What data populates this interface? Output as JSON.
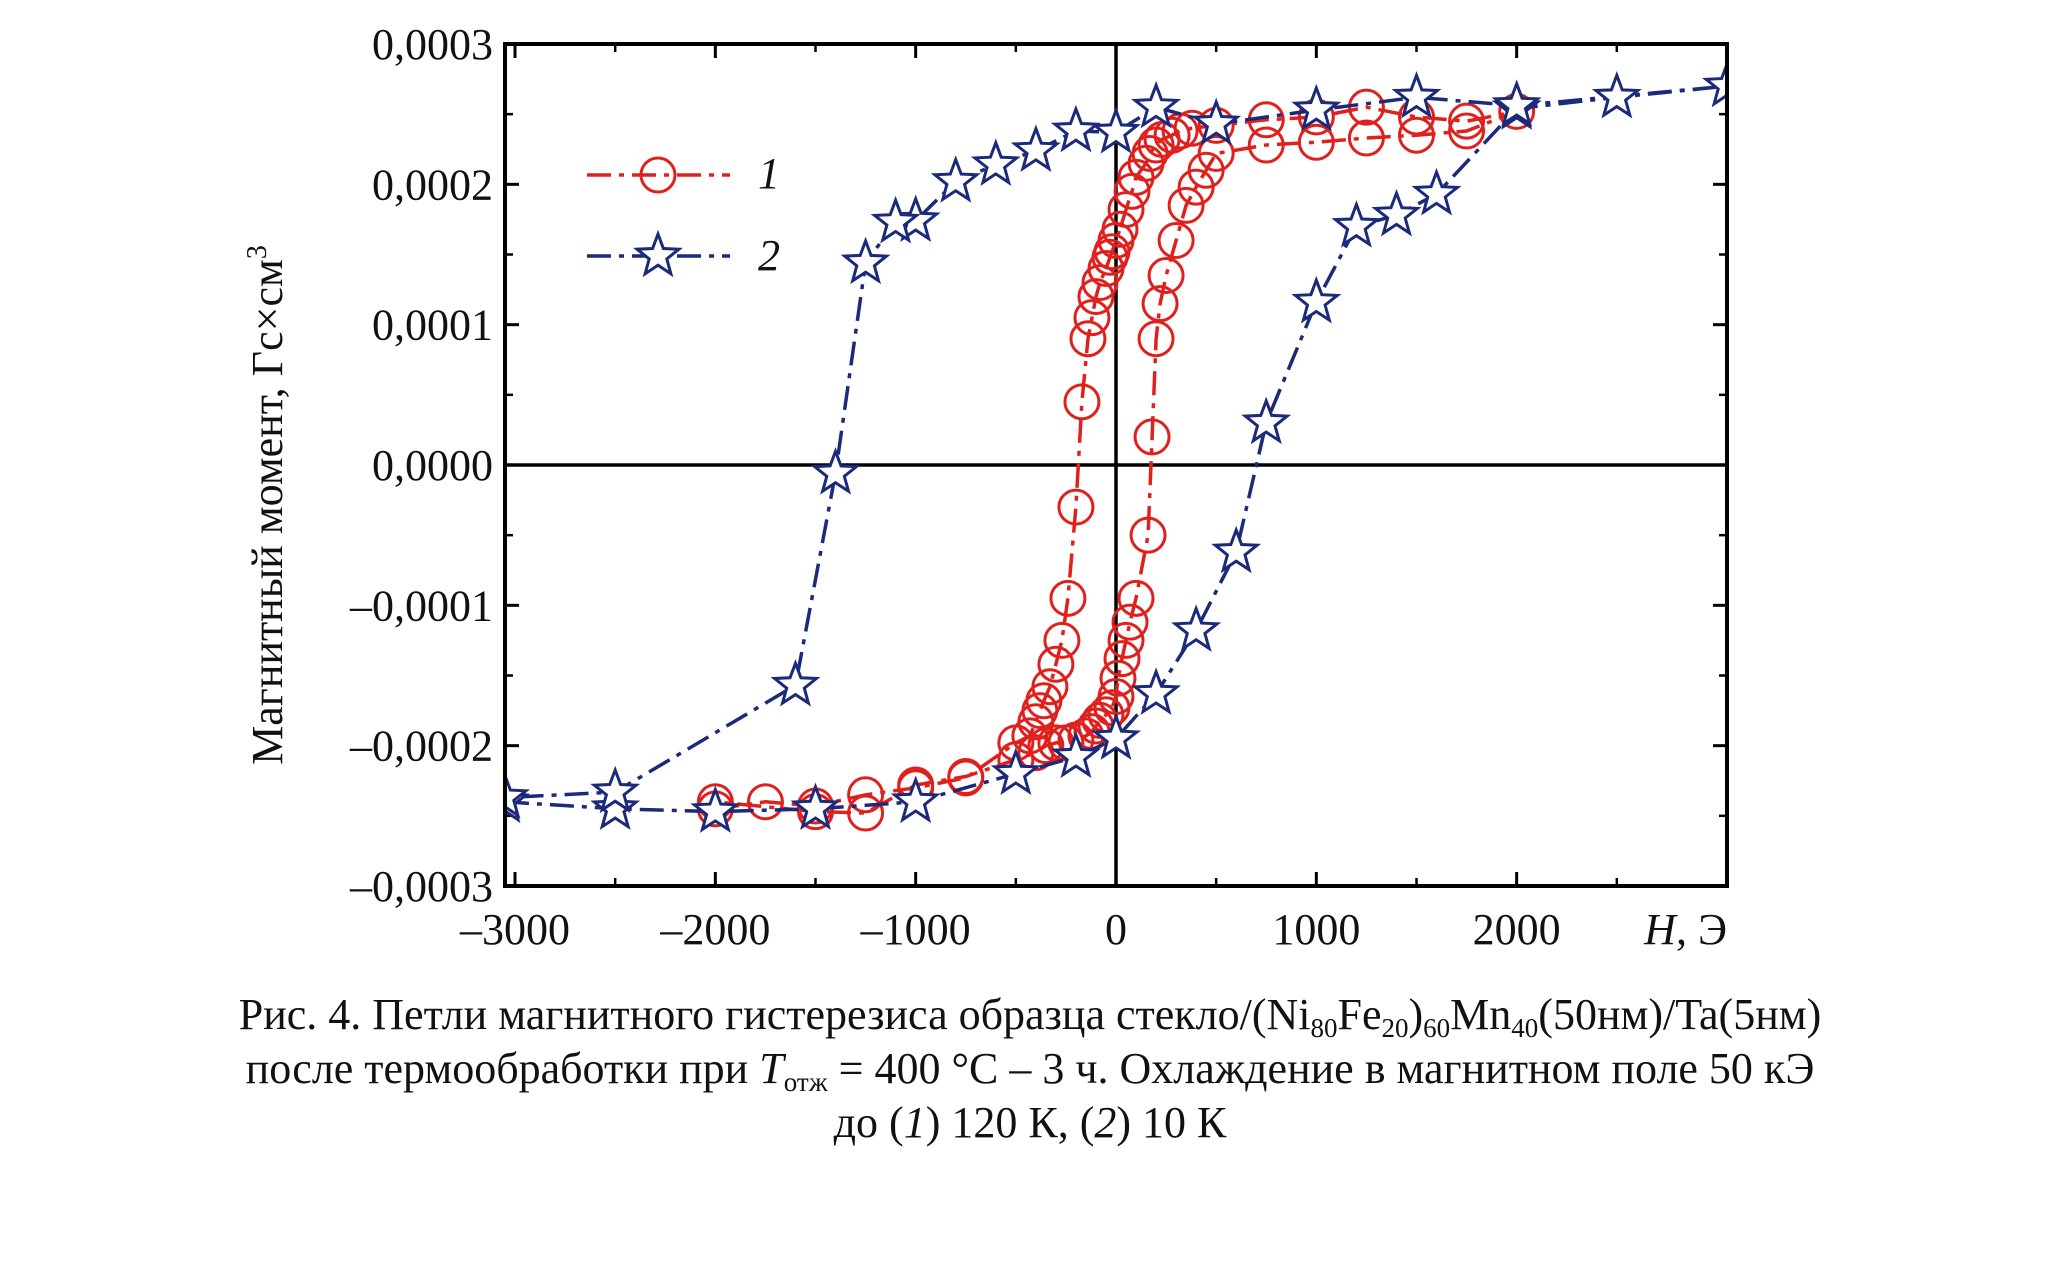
{
  "chart_data": {
    "type": "line",
    "title": "",
    "xlabel": "H, Э",
    "xlabel_parts": {
      "symbol": "H",
      "unit": ", Э"
    },
    "ylabel": "Магнитный момент, Гс×см3",
    "ylabel_parts": {
      "text": "Магнитный момент, Гс×см",
      "sup": "3"
    },
    "xlim": [
      -3050,
      3050
    ],
    "ylim": [
      -0.0003,
      0.0003
    ],
    "xticks": [
      -3000,
      -2000,
      -1000,
      0,
      1000,
      2000
    ],
    "xtick_labels": [
      "–3000",
      "–2000",
      "–1000",
      "0",
      "1000",
      "2000"
    ],
    "yticks": [
      0.0003,
      0.0002,
      0.0001,
      0.0,
      -0.0001,
      -0.0002,
      -0.0003
    ],
    "ytick_labels": [
      "0,0003",
      "0,0002",
      "0,0001",
      "0,0000",
      "–0,0001",
      "–0,0002",
      "–0,0003"
    ],
    "grid": false,
    "zero_lines": true,
    "legend_position": "top-left",
    "series": [
      {
        "name": "1",
        "color": "#e0201c",
        "marker": "circle",
        "dash": "dash-dot",
        "x": [
          -2000,
          -1750,
          -1500,
          -1250,
          -1000,
          -750,
          -500,
          -430,
          -400,
          -380,
          -360,
          -330,
          -300,
          -270,
          -240,
          -200,
          -170,
          -140,
          -120,
          -100,
          -80,
          -50,
          -30,
          -20,
          0,
          20,
          50,
          80,
          100,
          150,
          170,
          200,
          230,
          280,
          320,
          380,
          500,
          750,
          1000,
          1250,
          1500,
          1750,
          2000,
          1750,
          1500,
          1250,
          1000,
          750,
          500,
          450,
          400,
          350,
          300,
          250,
          220,
          200,
          180,
          160,
          100,
          70,
          50,
          30,
          10,
          0,
          -20,
          -50,
          -80,
          -100,
          -120,
          -150,
          -200,
          -250,
          -300,
          -350,
          -400,
          -500,
          -750,
          -1000,
          -1250,
          -1500,
          -2000
        ],
        "y": [
          -0.000245,
          -0.00024,
          -0.000243,
          -0.000235,
          -0.00023,
          -0.000223,
          -0.000198,
          -0.000193,
          -0.000183,
          -0.000175,
          -0.000168,
          -0.000158,
          -0.000142,
          -0.000125,
          -9.5e-05,
          -3e-05,
          4.5e-05,
          9e-05,
          0.000105,
          0.00012,
          0.00013,
          0.00014,
          0.000148,
          0.000152,
          0.00016,
          0.000168,
          0.000182,
          0.000195,
          0.000205,
          0.000215,
          0.000222,
          0.000228,
          0.000232,
          0.000235,
          0.000238,
          0.00024,
          0.000242,
          0.000246,
          0.000248,
          0.000255,
          0.000248,
          0.000245,
          0.000252,
          0.000238,
          0.000235,
          0.000233,
          0.00023,
          0.000228,
          0.000222,
          0.00021,
          0.000198,
          0.000185,
          0.00016,
          0.000135,
          0.000115,
          9e-05,
          2e-05,
          -5e-05,
          -9.5e-05,
          -0.000112,
          -0.000125,
          -0.000138,
          -0.000152,
          -0.000165,
          -0.000173,
          -0.000178,
          -0.000182,
          -0.000186,
          -0.00019,
          -0.000193,
          -0.000196,
          -0.000198,
          -0.000198,
          -0.0002,
          -0.000205,
          -0.00021,
          -0.000222,
          -0.000228,
          -0.000248,
          -0.000247,
          -0.00024
        ]
      },
      {
        "name": "2",
        "color": "#1c2a7a",
        "marker": "star",
        "dash": "dash-dot",
        "x": [
          -3050,
          -2500,
          -2000,
          -1500,
          -1000,
          -500,
          -200,
          0,
          200,
          400,
          600,
          750,
          1000,
          1200,
          1400,
          1600,
          2000,
          2500,
          3050,
          2000,
          1500,
          1000,
          500,
          200,
          0,
          -200,
          -400,
          -600,
          -800,
          -1000,
          -1100,
          -1250,
          -1400,
          -1600,
          -2500,
          -3050
        ],
        "y": [
          -0.00024,
          -0.000245,
          -0.000247,
          -0.000245,
          -0.00024,
          -0.00022,
          -0.000208,
          -0.000195,
          -0.000163,
          -0.000118,
          -6.2e-05,
          3e-05,
          0.000116,
          0.00017,
          0.000178,
          0.000193,
          0.000254,
          0.000262,
          0.00027,
          0.000256,
          0.000262,
          0.000253,
          0.000243,
          0.000255,
          0.000237,
          0.000238,
          0.000224,
          0.000214,
          0.000202,
          0.000174,
          0.000173,
          0.000144,
          -6e-06,
          -0.000157,
          -0.000233,
          -0.000237
        ]
      }
    ]
  },
  "caption": {
    "line1": {
      "prefix": "Рис. 4. Петли магнитного гистерезиса образца стекло/(Ni",
      "sub1": "80",
      "t1": "Fe",
      "sub2": "20",
      "t2": ")",
      "sub3": "60",
      "t3": "Mn",
      "sub4": "40",
      "t4": "(50нм)/Ta(5нм)"
    },
    "line2": {
      "prefix": "после термообработки при ",
      "t_symbol": "T",
      "t_sub": "отж",
      "suffix": " = 400 °C – 3 ч. Охлаждение в магнитном поле 50 кЭ"
    },
    "line3": {
      "prefix": "до (",
      "n1": "1",
      "mid": ") 120 К, (",
      "n2": "2",
      "suffix": ") 10 К"
    }
  }
}
